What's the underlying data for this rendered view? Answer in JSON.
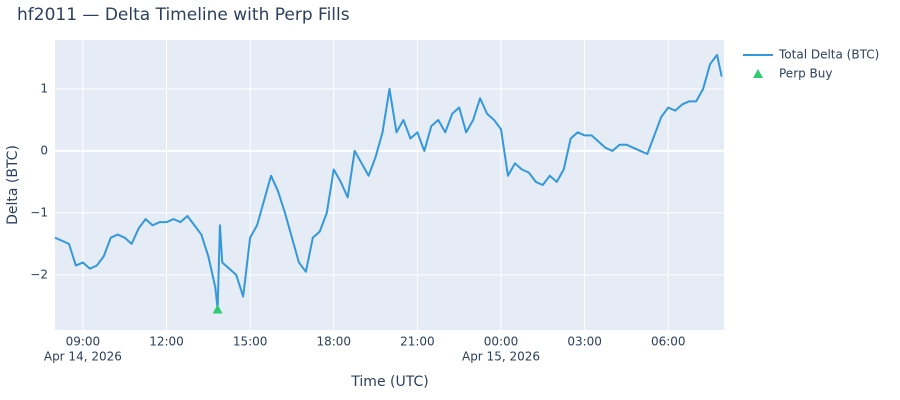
{
  "chart_data": {
    "type": "line",
    "title": "hf2011 — Delta Timeline with Perp Fills",
    "x_label": "Time (UTC)",
    "y_label": "Delta (BTC)",
    "xlim": [
      "2026-04-14 08:00",
      "2026-04-15 08:00"
    ],
    "ylim": [
      -2.89,
      1.79
    ],
    "xticks": [
      {
        "value": "2026-04-14 09:00",
        "label": "09:00"
      },
      {
        "value": "2026-04-14 12:00",
        "label": "12:00"
      },
      {
        "value": "2026-04-14 15:00",
        "label": "15:00"
      },
      {
        "value": "2026-04-14 18:00",
        "label": "18:00"
      },
      {
        "value": "2026-04-14 21:00",
        "label": "21:00"
      },
      {
        "value": "2026-04-15 00:00",
        "label": "00:00"
      },
      {
        "value": "2026-04-15 03:00",
        "label": "03:00"
      },
      {
        "value": "2026-04-15 06:00",
        "label": "06:00"
      }
    ],
    "xtick_dates": [
      {
        "value": "2026-04-14 09:00",
        "label": "Apr 14, 2026"
      },
      {
        "value": "2026-04-15 00:00",
        "label": "Apr 15, 2026"
      }
    ],
    "yticks": [
      {
        "value": -2,
        "label": "−2"
      },
      {
        "value": -1,
        "label": "−1"
      },
      0,
      1
    ],
    "grid": true,
    "legend": "outside-right",
    "series": [
      {
        "name": "Total Delta (BTC)",
        "type": "line",
        "color": "#3498db",
        "x": [
          "2026-04-14 08:00",
          "2026-04-14 08:15",
          "2026-04-14 08:30",
          "2026-04-14 08:45",
          "2026-04-14 09:00",
          "2026-04-14 09:15",
          "2026-04-14 09:30",
          "2026-04-14 09:45",
          "2026-04-14 10:00",
          "2026-04-14 10:15",
          "2026-04-14 10:30",
          "2026-04-14 10:45",
          "2026-04-14 11:00",
          "2026-04-14 11:15",
          "2026-04-14 11:30",
          "2026-04-14 11:45",
          "2026-04-14 12:00",
          "2026-04-14 12:15",
          "2026-04-14 12:30",
          "2026-04-14 12:45",
          "2026-04-14 13:00",
          "2026-04-14 13:15",
          "2026-04-14 13:30",
          "2026-04-14 13:45",
          "2026-04-14 13:50",
          "2026-04-14 13:55",
          "2026-04-14 14:00",
          "2026-04-14 14:15",
          "2026-04-14 14:30",
          "2026-04-14 14:45",
          "2026-04-14 15:00",
          "2026-04-14 15:15",
          "2026-04-14 15:30",
          "2026-04-14 15:45",
          "2026-04-14 16:00",
          "2026-04-14 16:15",
          "2026-04-14 16:30",
          "2026-04-14 16:45",
          "2026-04-14 17:00",
          "2026-04-14 17:15",
          "2026-04-14 17:30",
          "2026-04-14 17:45",
          "2026-04-14 18:00",
          "2026-04-14 18:15",
          "2026-04-14 18:30",
          "2026-04-14 18:45",
          "2026-04-14 19:00",
          "2026-04-14 19:15",
          "2026-04-14 19:30",
          "2026-04-14 19:45",
          "2026-04-14 20:00",
          "2026-04-14 20:15",
          "2026-04-14 20:30",
          "2026-04-14 20:45",
          "2026-04-14 21:00",
          "2026-04-14 21:15",
          "2026-04-14 21:30",
          "2026-04-14 21:45",
          "2026-04-14 22:00",
          "2026-04-14 22:15",
          "2026-04-14 22:30",
          "2026-04-14 22:45",
          "2026-04-14 23:00",
          "2026-04-14 23:15",
          "2026-04-14 23:30",
          "2026-04-14 23:45",
          "2026-04-15 00:00",
          "2026-04-15 00:15",
          "2026-04-15 00:30",
          "2026-04-15 00:45",
          "2026-04-15 01:00",
          "2026-04-15 01:15",
          "2026-04-15 01:30",
          "2026-04-15 01:45",
          "2026-04-15 02:00",
          "2026-04-15 02:15",
          "2026-04-15 02:30",
          "2026-04-15 02:45",
          "2026-04-15 03:00",
          "2026-04-15 03:15",
          "2026-04-15 03:30",
          "2026-04-15 03:45",
          "2026-04-15 04:00",
          "2026-04-15 04:15",
          "2026-04-15 04:30",
          "2026-04-15 04:45",
          "2026-04-15 05:00",
          "2026-04-15 05:15",
          "2026-04-15 05:30",
          "2026-04-15 05:45",
          "2026-04-15 06:00",
          "2026-04-15 06:15",
          "2026-04-15 06:30",
          "2026-04-15 06:45",
          "2026-04-15 07:00",
          "2026-04-15 07:15",
          "2026-04-15 07:30",
          "2026-04-15 07:45",
          "2026-04-15 07:55"
        ],
        "values": [
          -1.4,
          -1.45,
          -1.5,
          -1.85,
          -1.8,
          -1.9,
          -1.85,
          -1.7,
          -1.4,
          -1.35,
          -1.4,
          -1.5,
          -1.25,
          -1.1,
          -1.2,
          -1.15,
          -1.15,
          -1.1,
          -1.15,
          -1.05,
          -1.2,
          -1.35,
          -1.7,
          -2.2,
          -2.55,
          -1.2,
          -1.8,
          -1.9,
          -2.0,
          -2.35,
          -1.4,
          -1.2,
          -0.8,
          -0.4,
          -0.65,
          -1.0,
          -1.4,
          -1.8,
          -1.95,
          -1.4,
          -1.3,
          -1.0,
          -0.3,
          -0.5,
          -0.75,
          0.0,
          -0.2,
          -0.4,
          -0.1,
          0.3,
          1.0,
          0.3,
          0.5,
          0.2,
          0.3,
          0.0,
          0.4,
          0.5,
          0.3,
          0.6,
          0.7,
          0.3,
          0.5,
          0.85,
          0.6,
          0.5,
          0.35,
          -0.4,
          -0.2,
          -0.3,
          -0.35,
          -0.5,
          -0.55,
          -0.4,
          -0.5,
          -0.3,
          0.2,
          0.3,
          0.25,
          0.25,
          0.15,
          0.05,
          0.0,
          0.1,
          0.1,
          0.05,
          0.0,
          -0.05,
          0.25,
          0.55,
          0.7,
          0.65,
          0.75,
          0.8,
          0.8,
          1.0,
          1.4,
          1.55,
          1.2
        ]
      },
      {
        "name": "Perp Buy",
        "type": "scatter",
        "color": "#2ecc71",
        "x": [
          "2026-04-14 13:50"
        ],
        "values": [
          -2.56
        ]
      }
    ]
  }
}
